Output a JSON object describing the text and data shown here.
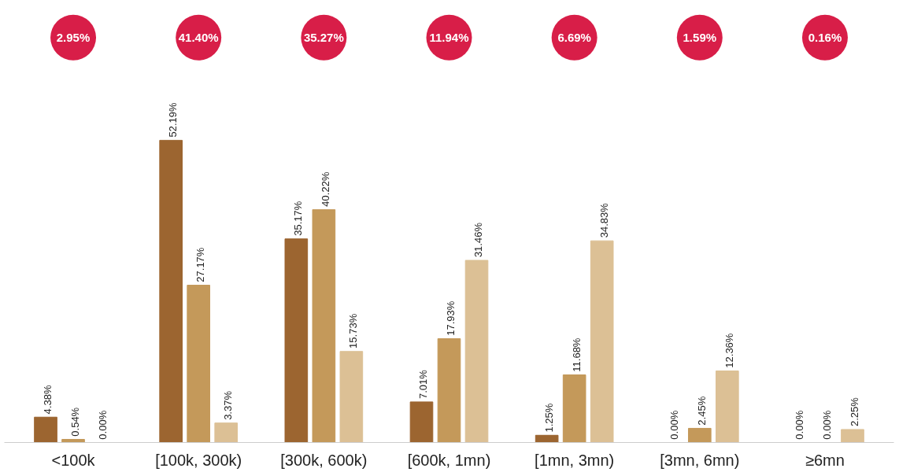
{
  "chart_data": {
    "type": "bar",
    "categories": [
      "<100k",
      "[100k, 300k)",
      "[300k, 600k)",
      "[600k, 1mn)",
      "[1mn, 3mn)",
      "[3mn, 6mn)",
      "≥6mn"
    ],
    "series": [
      {
        "color": "#9c6530",
        "values": [
          4.38,
          52.19,
          35.17,
          7.01,
          1.25,
          0.0,
          0.0
        ],
        "value_labels": [
          "4.38%",
          "52.19%",
          "35.17%",
          "7.01%",
          "1.25%",
          "0.00%",
          "0.00%"
        ]
      },
      {
        "color": "#c4995a",
        "values": [
          0.54,
          27.17,
          40.22,
          17.93,
          11.68,
          2.45,
          0.0
        ],
        "value_labels": [
          "0.54%",
          "27.17%",
          "40.22%",
          "17.93%",
          "11.68%",
          "2.45%",
          "0.00%"
        ]
      },
      {
        "color": "#dcc095",
        "values": [
          0.0,
          3.37,
          15.73,
          31.46,
          34.83,
          12.36,
          2.25
        ],
        "value_labels": [
          "0.00%",
          "3.37%",
          "15.73%",
          "31.46%",
          "34.83%",
          "12.36%",
          "2.25%"
        ]
      }
    ],
    "annotations": [
      "2.95%",
      "41.40%",
      "35.27%",
      "11.94%",
      "6.69%",
      "1.59%",
      "0.16%"
    ],
    "grid": false
  }
}
